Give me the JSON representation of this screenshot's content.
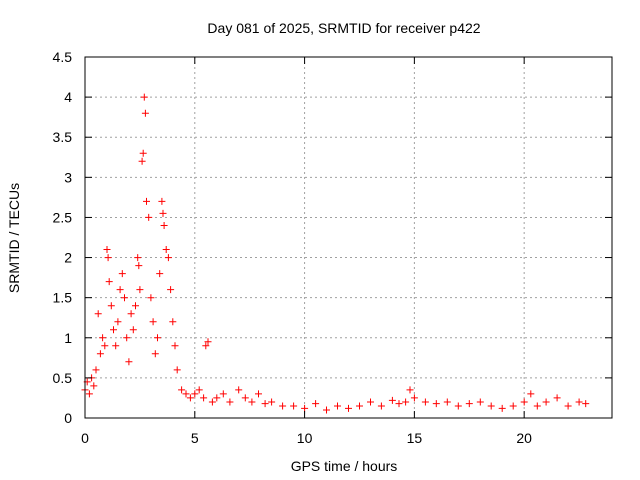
{
  "chart_data": {
    "type": "scatter",
    "title": "Day 081 of 2025, SRMTID for receiver p422",
    "xlabel": "GPS time / hours",
    "ylabel": "SRMTID / TECUs",
    "xlim": [
      0,
      24
    ],
    "ylim": [
      0,
      4.5
    ],
    "xticks": [
      0,
      5,
      10,
      15,
      20
    ],
    "xtick_labels": [
      "0",
      "5",
      "10",
      "15",
      "20"
    ],
    "yticks": [
      0,
      0.5,
      1,
      1.5,
      2,
      2.5,
      3,
      3.5,
      4,
      4.5
    ],
    "ytick_labels": [
      "0",
      "0.5",
      "1",
      "1.5",
      "2",
      "2.5",
      "3",
      "3.5",
      "4",
      "4.5"
    ],
    "grid": true,
    "marker": "+",
    "color": "#ff0000",
    "series": [
      {
        "name": "SRMTID",
        "x": [
          0.0,
          0.1,
          0.2,
          0.3,
          0.4,
          0.5,
          0.6,
          0.7,
          0.8,
          0.9,
          1.0,
          1.05,
          1.1,
          1.2,
          1.3,
          1.4,
          1.5,
          1.6,
          1.7,
          1.8,
          1.9,
          2.0,
          2.1,
          2.2,
          2.3,
          2.4,
          2.45,
          2.5,
          2.6,
          2.65,
          2.7,
          2.75,
          2.8,
          2.9,
          3.0,
          3.1,
          3.2,
          3.3,
          3.4,
          3.5,
          3.55,
          3.6,
          3.7,
          3.8,
          3.9,
          4.0,
          4.1,
          4.2,
          4.4,
          4.6,
          4.8,
          5.0,
          5.2,
          5.4,
          5.5,
          5.6,
          5.8,
          6.0,
          6.3,
          6.6,
          7.0,
          7.3,
          7.6,
          7.9,
          8.2,
          8.5,
          9.0,
          9.5,
          10.0,
          10.5,
          11.0,
          11.5,
          12.0,
          12.5,
          13.0,
          13.5,
          14.0,
          14.3,
          14.6,
          14.8,
          15.0,
          15.5,
          16.0,
          16.5,
          17.0,
          17.5,
          18.0,
          18.5,
          19.0,
          19.5,
          20.0,
          20.3,
          20.6,
          21.0,
          21.5,
          22.0,
          22.5,
          22.8
        ],
        "y": [
          0.35,
          0.45,
          0.3,
          0.5,
          0.4,
          0.6,
          1.3,
          0.8,
          1.0,
          0.9,
          2.1,
          2.0,
          1.7,
          1.4,
          1.1,
          0.9,
          1.2,
          1.6,
          1.8,
          1.5,
          1.0,
          0.7,
          1.3,
          1.1,
          1.4,
          2.0,
          1.9,
          1.6,
          3.2,
          3.3,
          4.0,
          3.8,
          2.7,
          2.5,
          1.5,
          1.2,
          0.8,
          1.0,
          1.8,
          2.7,
          2.55,
          2.4,
          2.1,
          2.0,
          1.6,
          1.2,
          0.9,
          0.6,
          0.35,
          0.3,
          0.25,
          0.3,
          0.35,
          0.25,
          0.9,
          0.95,
          0.2,
          0.25,
          0.3,
          0.2,
          0.35,
          0.25,
          0.2,
          0.3,
          0.18,
          0.2,
          0.15,
          0.15,
          0.12,
          0.18,
          0.1,
          0.15,
          0.12,
          0.15,
          0.2,
          0.15,
          0.22,
          0.18,
          0.2,
          0.35,
          0.25,
          0.2,
          0.18,
          0.2,
          0.15,
          0.18,
          0.2,
          0.15,
          0.12,
          0.15,
          0.2,
          0.3,
          0.15,
          0.2,
          0.25,
          0.15,
          0.2,
          0.18
        ]
      }
    ]
  }
}
